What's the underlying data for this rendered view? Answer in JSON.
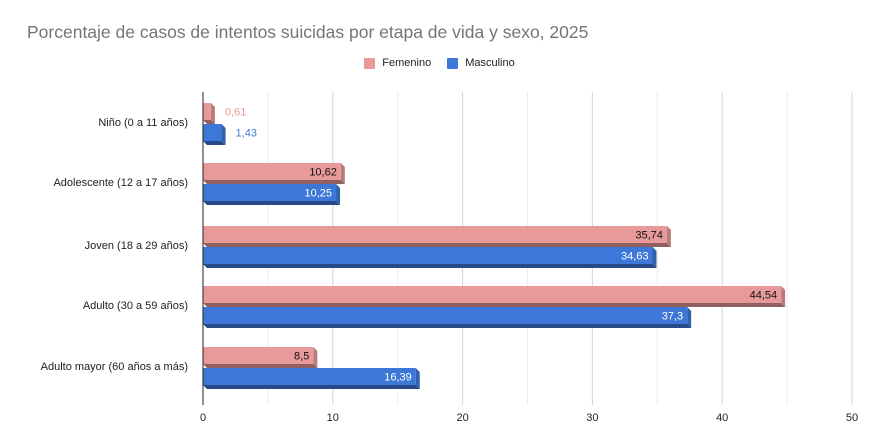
{
  "chart_data": {
    "type": "bar",
    "orientation": "horizontal",
    "title": "Porcentaje de casos de intentos suicidas por etapa de vida y sexo, 2025",
    "categories": [
      "Niño (0 a 11 años)",
      "Adolescente (12 a 17 años)",
      "Joven (18 a 29 años)",
      "Adulto (30 a 59 años)",
      "Adulto mayor (60 años a más)"
    ],
    "series": [
      {
        "name": "Femenino",
        "color": "#e89a9a",
        "values": [
          0.61,
          10.62,
          35.74,
          44.54,
          8.5
        ],
        "labels": [
          "0,61",
          "10,62",
          "35,74",
          "44,54",
          "8,5"
        ]
      },
      {
        "name": "Masculino",
        "color": "#3d78d8",
        "values": [
          1.43,
          10.25,
          34.63,
          37.3,
          16.39
        ],
        "labels": [
          "1,43",
          "10,25",
          "34,63",
          "37,3",
          "16,39"
        ]
      }
    ],
    "xlim": [
      0,
      50
    ],
    "xticks": [
      0,
      10,
      20,
      30,
      40,
      50
    ],
    "xlabel": "",
    "ylabel": "",
    "grid": true,
    "legend_position": "top"
  }
}
